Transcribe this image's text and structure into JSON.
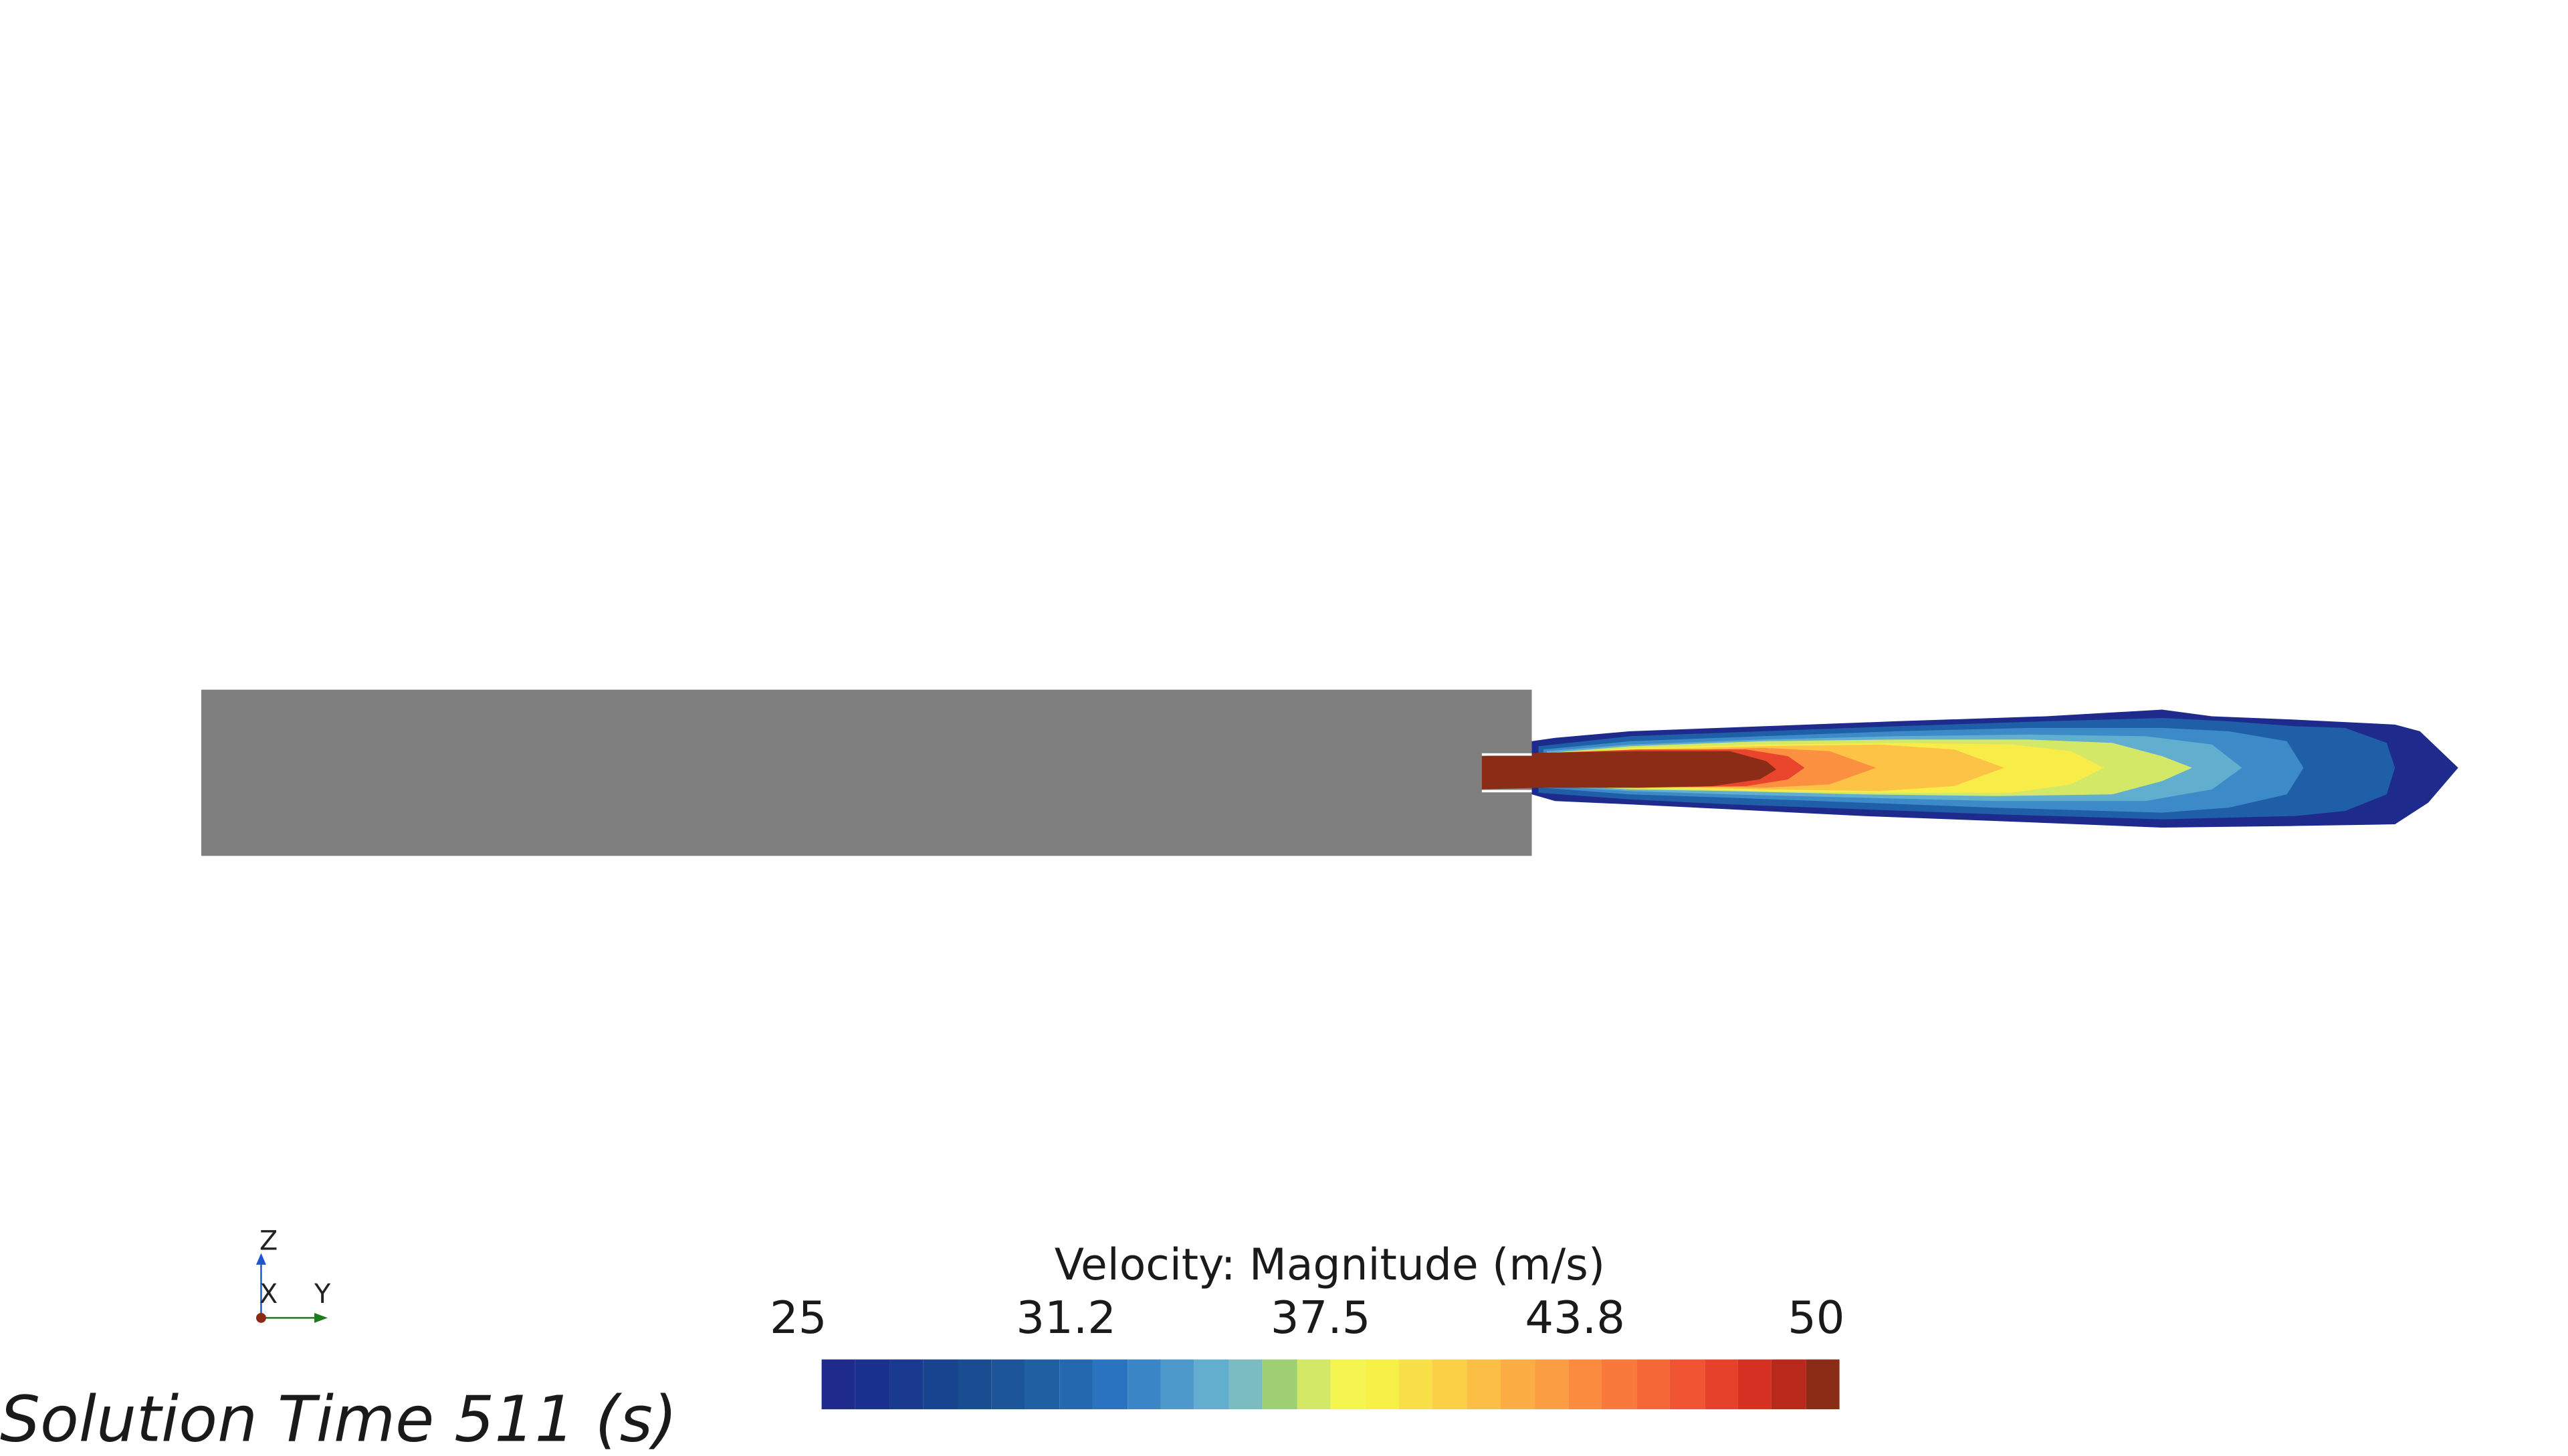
{
  "legend": {
    "title": "Velocity: Magnitude (m/s)",
    "ticks": [
      "25",
      "31.2",
      "37.5",
      "43.8",
      "50"
    ],
    "min": 25,
    "max": 50,
    "colors": [
      "#1e2a8c",
      "#1b318f",
      "#193a8f",
      "#17438f",
      "#1a4c92",
      "#1c5698",
      "#1f60a2",
      "#2469b0",
      "#2a73c0",
      "#3a86c6",
      "#4e99cc",
      "#62aecf",
      "#7bbcc2",
      "#9ecf73",
      "#d4e868",
      "#f5f550",
      "#f7f046",
      "#fae048",
      "#fbd047",
      "#fcbf46",
      "#fcae44",
      "#fb9d42",
      "#fa8b3f",
      "#f9793c",
      "#f66737",
      "#f05432",
      "#e6412a",
      "#d63123",
      "#b8291c",
      "#8a2c16"
    ]
  },
  "solution_time": {
    "label": "Solution Time",
    "value": "511",
    "unit": "(s)"
  },
  "triad": {
    "axes": [
      "Z",
      "X",
      "Y"
    ],
    "colors": {
      "z": "#2255cc",
      "y": "#1d7a1d",
      "x": "#8b2a16"
    }
  },
  "geometry": {
    "part_color": "#7f7f7f"
  }
}
